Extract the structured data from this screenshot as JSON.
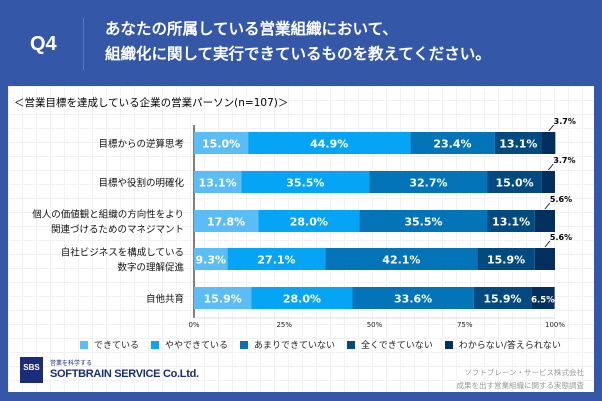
{
  "header": {
    "q": "Q4",
    "title_line1": "あなたの所属している営業組織において、",
    "title_line2": "組織化に関して実行できているものを教えてください。"
  },
  "chart_data": {
    "type": "bar",
    "orientation": "horizontal",
    "stacked": true,
    "title": "＜営業目標を達成している企業の営業パーソン(n=107)＞",
    "categories": [
      "目標からの逆算思考",
      "目標や役割の明確化",
      "個人の価値観と組織の方向性をより\n関連づけるためのマネジマント",
      "自社ビジネスを構成している\n数字の理解促進",
      "自他共育"
    ],
    "series": [
      {
        "name": "できている",
        "color": "#5bbdf6",
        "values": [
          15.0,
          13.1,
          17.8,
          9.3,
          15.9
        ]
      },
      {
        "name": "ややできている",
        "color": "#05a4f5",
        "values": [
          44.9,
          35.5,
          28.0,
          27.1,
          28.0
        ]
      },
      {
        "name": "あまりできていない",
        "color": "#0474b8",
        "values": [
          23.4,
          32.7,
          35.5,
          42.1,
          33.6
        ]
      },
      {
        "name": "全くできていない",
        "color": "#034a80",
        "values": [
          13.1,
          15.0,
          13.1,
          15.9,
          15.9
        ]
      },
      {
        "name": "わからない/答えられない",
        "color": "#02305e",
        "values": [
          3.7,
          3.7,
          5.6,
          5.6,
          6.5
        ]
      }
    ],
    "xlim": [
      0,
      100
    ],
    "xticks": [
      "0%",
      "25%",
      "50%",
      "75%",
      "100%"
    ],
    "legend": "bottom",
    "grid": false
  },
  "footer": {
    "logo": "SBS",
    "tagline": "営業を科学する",
    "company": "SOFTBRAIN  SERVICE Co.Ltd.",
    "source1": "ソフトブレーン・サービス株式会社",
    "source2": "成果を出す営業組織に関する実態調査"
  }
}
